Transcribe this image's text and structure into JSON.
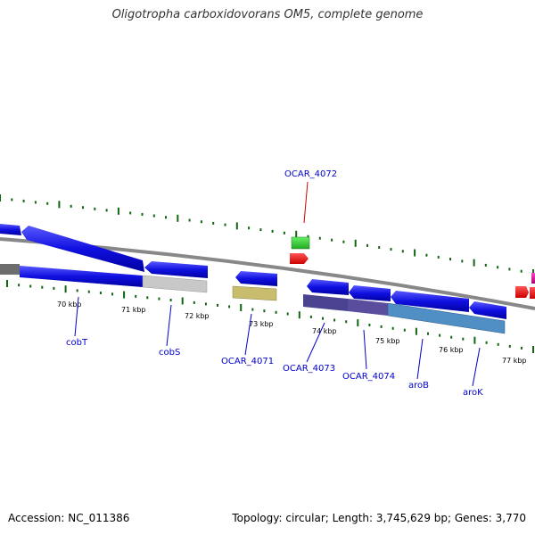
{
  "title": "Oligotropha carboxidovorans OM5, complete genome",
  "footer": {
    "accession": "Accession: NC_011386",
    "summary": "Topology: circular; Length: 3,745,629 bp; Genes: 3,770"
  },
  "scale_labels": [
    "70 kbp",
    "71 kbp",
    "72 kbp",
    "73 kbp",
    "74 kbp",
    "75 kbp",
    "76 kbp",
    "77 kbp"
  ],
  "gene_labels": [
    {
      "name": "cobT",
      "color": "#0000cc"
    },
    {
      "name": "cobS",
      "color": "#0000cc"
    },
    {
      "name": "OCAR_4071",
      "color": "#0000cc"
    },
    {
      "name": "OCAR_4072",
      "color": "#cc0000"
    },
    {
      "name": "OCAR_4073",
      "color": "#0000cc"
    },
    {
      "name": "OCAR_4074",
      "color": "#0000cc"
    },
    {
      "name": "aroB",
      "color": "#0000cc"
    },
    {
      "name": "aroK",
      "color": "#0000cc"
    }
  ],
  "colors": {
    "gene_blue": "#1010e0",
    "gene_red": "#ee1111",
    "gene_green": "#33cc33",
    "gene_magenta": "#cc0099",
    "backbone": "#888888",
    "tick": "#116611"
  }
}
